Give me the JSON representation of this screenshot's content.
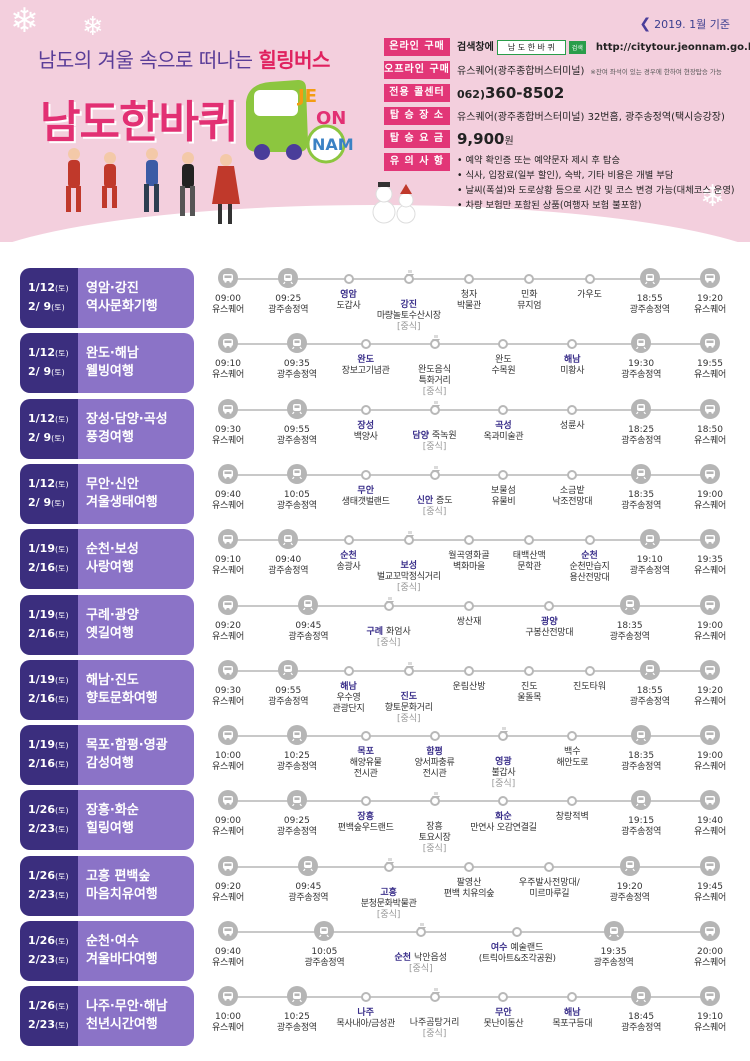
{
  "header": {
    "date_note": "2019. 1월 기준",
    "subtitle_pre": "남도의 겨울 속으로 떠나는 ",
    "subtitle_em": "힐링버스",
    "title": "남도한바퀴",
    "logo_text": "JEONNAM",
    "info": {
      "online_label": "온라인 구매",
      "online_pre": "검색창에",
      "online_search": "남 도 한 바 퀴",
      "online_search_btn": "검색",
      "online_url": "http://citytour.jeonnam.go.kr",
      "offline_label": "오프라인 구매",
      "offline_value": "유스퀘어(광주종합버스터미널)",
      "offline_note": "※잔여 좌석이 있는 경우에 한하여 현장탑승 가능",
      "callcenter_label": "전용 콜센터",
      "callcenter_prefix": "062)",
      "callcenter_number": "360-8502",
      "place_label": "탑 승 장 소",
      "place_value": "유스퀘어(광주종합버스터미널) 32번홈, 광주송정역(택시승강장)",
      "fee_label": "탑 승 요 금",
      "fee_value": "9,900",
      "fee_unit": "원",
      "notice_label": "유 의 사 항",
      "notices": [
        "예약 확인증 또는 예약문자 제시 후 탑승",
        "식사, 입장료(일부 할인), 숙박, 기타 비용은 개별 부담",
        "날씨(폭설)와 도로상황 등으로 시간 및 코스 변경 가능(대체코스 운영)",
        "차량 보험만 포함된 상품(여행자 보험 불포함)"
      ]
    }
  },
  "tours": [
    {
      "date1": "1/12",
      "day1": "(토)",
      "date2": "2/ 9",
      "day2": "(토)",
      "name1": "영암·강진",
      "name2": "역사문화기행",
      "stops": [
        {
          "icon": "bus",
          "time": "09:00",
          "place": "유스퀘어"
        },
        {
          "icon": "train",
          "time": "09:25",
          "place": "광주송정역"
        },
        {
          "icon": "dot",
          "hl": "영암",
          "place": "도갑사"
        },
        {
          "icon": "bowl",
          "hl": "강진",
          "place": "마량놀토수산시장",
          "tag": "[중식]"
        },
        {
          "icon": "dot",
          "time": "청자",
          "place": "박물관"
        },
        {
          "icon": "dot",
          "time": "민화",
          "place": "뮤지엄"
        },
        {
          "icon": "dot",
          "time": "가우도",
          "place": ""
        },
        {
          "icon": "train",
          "time": "18:55",
          "place": "광주송정역"
        },
        {
          "icon": "bus",
          "time": "19:20",
          "place": "유스퀘어"
        }
      ]
    },
    {
      "date1": "1/12",
      "day1": "(토)",
      "date2": "2/ 9",
      "day2": "(토)",
      "name1": "완도·해남",
      "name2": "웰빙여행",
      "stops": [
        {
          "icon": "bus",
          "time": "09:10",
          "place": "유스퀘어"
        },
        {
          "icon": "train",
          "time": "09:35",
          "place": "광주송정역"
        },
        {
          "icon": "dot",
          "hl": "완도",
          "place": "장보고기념관"
        },
        {
          "icon": "bowl",
          "time": "완도음식",
          "place": "특화거리",
          "tag": "[중식]"
        },
        {
          "icon": "dot",
          "time": "완도",
          "place": "수목원"
        },
        {
          "icon": "dot",
          "hl": "해남",
          "place": "미황사"
        },
        {
          "icon": "train",
          "time": "19:30",
          "place": "광주송정역"
        },
        {
          "icon": "bus",
          "time": "19:55",
          "place": "유스퀘어"
        }
      ]
    },
    {
      "date1": "1/12",
      "day1": "(토)",
      "date2": "2/ 9",
      "day2": "(토)",
      "name1": "장성·담양·곡성",
      "name2": "풍경여행",
      "stops": [
        {
          "icon": "bus",
          "time": "09:30",
          "place": "유스퀘어"
        },
        {
          "icon": "train",
          "time": "09:55",
          "place": "광주송정역"
        },
        {
          "icon": "dot",
          "hl": "장성",
          "place": "백양사"
        },
        {
          "icon": "bowl",
          "hl": "담양",
          "hl_rest": " 죽녹원",
          "place": "",
          "tag": "[중식]"
        },
        {
          "icon": "dot",
          "hl": "곡성",
          "place": "옥과미술관"
        },
        {
          "icon": "dot",
          "time": "성륜사",
          "place": ""
        },
        {
          "icon": "train",
          "time": "18:25",
          "place": "광주송정역"
        },
        {
          "icon": "bus",
          "time": "18:50",
          "place": "유스퀘어"
        }
      ]
    },
    {
      "date1": "1/12",
      "day1": "(토)",
      "date2": "2/ 9",
      "day2": "(토)",
      "name1": "무안·신안",
      "name2": "겨울생태여행",
      "stops": [
        {
          "icon": "bus",
          "time": "09:40",
          "place": "유스퀘어"
        },
        {
          "icon": "train",
          "time": "10:05",
          "place": "광주송정역"
        },
        {
          "icon": "dot",
          "hl": "무안",
          "place": "생태갯벌랜드"
        },
        {
          "icon": "bowl",
          "hl": "신안",
          "hl_rest": " 증도",
          "place": "",
          "tag": "[중식]"
        },
        {
          "icon": "dot",
          "time": "보물섬",
          "place": "유물비"
        },
        {
          "icon": "dot",
          "time": "소금밭",
          "place": "낙조전망대"
        },
        {
          "icon": "train",
          "time": "18:35",
          "place": "광주송정역"
        },
        {
          "icon": "bus",
          "time": "19:00",
          "place": "유스퀘어"
        }
      ]
    },
    {
      "date1": "1/19",
      "day1": "(토)",
      "date2": "2/16",
      "day2": "(토)",
      "name1": "순천·보성",
      "name2": "사랑여행",
      "stops": [
        {
          "icon": "bus",
          "time": "09:10",
          "place": "유스퀘어"
        },
        {
          "icon": "train",
          "time": "09:40",
          "place": "광주송정역"
        },
        {
          "icon": "dot",
          "hl": "순천",
          "place": "송광사"
        },
        {
          "icon": "bowl",
          "hl": "보성",
          "place": "벌교꼬막정식거리",
          "tag": "[중식]"
        },
        {
          "icon": "dot",
          "time": "월곡영화골",
          "place": "벽화마을"
        },
        {
          "icon": "dot",
          "time": "태백산맥",
          "place": "문학관"
        },
        {
          "icon": "dot",
          "hl": "순천",
          "place": "순천만습지\n용산전망대"
        },
        {
          "icon": "train",
          "time": "19:10",
          "place": "광주송정역"
        },
        {
          "icon": "bus",
          "time": "19:35",
          "place": "유스퀘어"
        }
      ]
    },
    {
      "date1": "1/19",
      "day1": "(토)",
      "date2": "2/16",
      "day2": "(토)",
      "name1": "구례·광양",
      "name2": "옛길여행",
      "stops": [
        {
          "icon": "bus",
          "time": "09:20",
          "place": "유스퀘어"
        },
        {
          "icon": "train",
          "time": "09:45",
          "place": "광주송정역"
        },
        {
          "icon": "bowl",
          "hl": "구례",
          "hl_rest": " 화엄사",
          "place": "",
          "tag": "[중식]"
        },
        {
          "icon": "dot",
          "time": "쌍산재",
          "place": ""
        },
        {
          "icon": "dot",
          "hl": "광양",
          "place": "구봉산전망대"
        },
        {
          "icon": "train",
          "time": "18:35",
          "place": "광주송정역"
        },
        {
          "icon": "bus",
          "time": "19:00",
          "place": "유스퀘어"
        }
      ]
    },
    {
      "date1": "1/19",
      "day1": "(토)",
      "date2": "2/16",
      "day2": "(토)",
      "name1": "해남·진도",
      "name2": "향토문화여행",
      "stops": [
        {
          "icon": "bus",
          "time": "09:30",
          "place": "유스퀘어"
        },
        {
          "icon": "train",
          "time": "09:55",
          "place": "광주송정역"
        },
        {
          "icon": "dot",
          "hl": "해남",
          "place": "우수영\n관광단지"
        },
        {
          "icon": "bowl",
          "hl": "진도",
          "place": "향토문화거리",
          "tag": "[중식]"
        },
        {
          "icon": "dot",
          "time": "운림산방",
          "place": ""
        },
        {
          "icon": "dot",
          "time": "진도",
          "place": "울돌목"
        },
        {
          "icon": "dot",
          "time": "진도타워",
          "place": ""
        },
        {
          "icon": "train",
          "time": "18:55",
          "place": "광주송정역"
        },
        {
          "icon": "bus",
          "time": "19:20",
          "place": "유스퀘어"
        }
      ]
    },
    {
      "date1": "1/19",
      "day1": "(토)",
      "date2": "2/16",
      "day2": "(토)",
      "name1": "목포·함평·영광",
      "name2": "감성여행",
      "stops": [
        {
          "icon": "bus",
          "time": "10:00",
          "place": "유스퀘어"
        },
        {
          "icon": "train",
          "time": "10:25",
          "place": "광주송정역"
        },
        {
          "icon": "dot",
          "hl": "목포",
          "place": "해양유물\n전시관"
        },
        {
          "icon": "dot",
          "hl": "함평",
          "place": "양서파충류\n전시관"
        },
        {
          "icon": "bowl",
          "hl": "영광",
          "place": "불갑사",
          "tag": "[중식]"
        },
        {
          "icon": "dot",
          "time": "백수",
          "place": "해안도로"
        },
        {
          "icon": "train",
          "time": "18:35",
          "place": "광주송정역"
        },
        {
          "icon": "bus",
          "time": "19:00",
          "place": "유스퀘어"
        }
      ]
    },
    {
      "date1": "1/26",
      "day1": "(토)",
      "date2": "2/23",
      "day2": "(토)",
      "name1": "장흥·화순",
      "name2": "힐링여행",
      "stops": [
        {
          "icon": "bus",
          "time": "09:00",
          "place": "유스퀘어"
        },
        {
          "icon": "train",
          "time": "09:25",
          "place": "광주송정역"
        },
        {
          "icon": "dot",
          "hl": "장흥",
          "place": "편백숲우드랜드"
        },
        {
          "icon": "bowl",
          "time": "장흥",
          "place": "토요시장",
          "tag": "[중식]"
        },
        {
          "icon": "dot",
          "hl": "화순",
          "place": "만연사 오감연결길"
        },
        {
          "icon": "dot",
          "time": "창랑적벽",
          "place": ""
        },
        {
          "icon": "train",
          "time": "19:15",
          "place": "광주송정역"
        },
        {
          "icon": "bus",
          "time": "19:40",
          "place": "유스퀘어"
        }
      ]
    },
    {
      "date1": "1/26",
      "day1": "(토)",
      "date2": "2/23",
      "day2": "(토)",
      "name1": "고흥 편백숲",
      "name2": "마음치유여행",
      "stops": [
        {
          "icon": "bus",
          "time": "09:20",
          "place": "유스퀘어"
        },
        {
          "icon": "train",
          "time": "09:45",
          "place": "광주송정역"
        },
        {
          "icon": "bowl",
          "hl": "고흥",
          "place": "분청문화박물관",
          "tag": "[중식]"
        },
        {
          "icon": "dot",
          "time": "팔영산",
          "place": "편백 치유의숲"
        },
        {
          "icon": "dot",
          "time": "우주발사전망대/",
          "place": "미르마루길"
        },
        {
          "icon": "train",
          "time": "19:20",
          "place": "광주송정역"
        },
        {
          "icon": "bus",
          "time": "19:45",
          "place": "유스퀘어"
        }
      ]
    },
    {
      "date1": "1/26",
      "day1": "(토)",
      "date2": "2/23",
      "day2": "(토)",
      "name1": "순천·여수",
      "name2": "겨울바다여행",
      "stops": [
        {
          "icon": "bus",
          "time": "09:40",
          "place": "유스퀘어"
        },
        {
          "icon": "train",
          "time": "10:05",
          "place": "광주송정역"
        },
        {
          "icon": "bowl",
          "hl": "순천",
          "hl_rest": " 낙안읍성",
          "place": "",
          "tag": "[중식]"
        },
        {
          "icon": "dot",
          "hl": "여수",
          "hl_rest": " 예술랜드",
          "place": "(트릭아트&조각공원)"
        },
        {
          "icon": "train",
          "time": "19:35",
          "place": "광주송정역"
        },
        {
          "icon": "bus",
          "time": "20:00",
          "place": "유스퀘어"
        }
      ]
    },
    {
      "date1": "1/26",
      "day1": "(토)",
      "date2": "2/23",
      "day2": "(토)",
      "name1": "나주·무안·해남",
      "name2": "천년시간여행",
      "stops": [
        {
          "icon": "bus",
          "time": "10:00",
          "place": "유스퀘어"
        },
        {
          "icon": "train",
          "time": "10:25",
          "place": "광주송정역"
        },
        {
          "icon": "dot",
          "hl": "나주",
          "place": "목사내아/금성관"
        },
        {
          "icon": "bowl",
          "time": "나주곰탕거리",
          "place": "",
          "tag": "[중식]"
        },
        {
          "icon": "dot",
          "hl": "무안",
          "place": "못난이동산"
        },
        {
          "icon": "dot",
          "hl": "해남",
          "place": "목포구등대"
        },
        {
          "icon": "train",
          "time": "18:45",
          "place": "광주송정역"
        },
        {
          "icon": "bus",
          "time": "19:10",
          "place": "유스퀘어"
        }
      ]
    }
  ]
}
